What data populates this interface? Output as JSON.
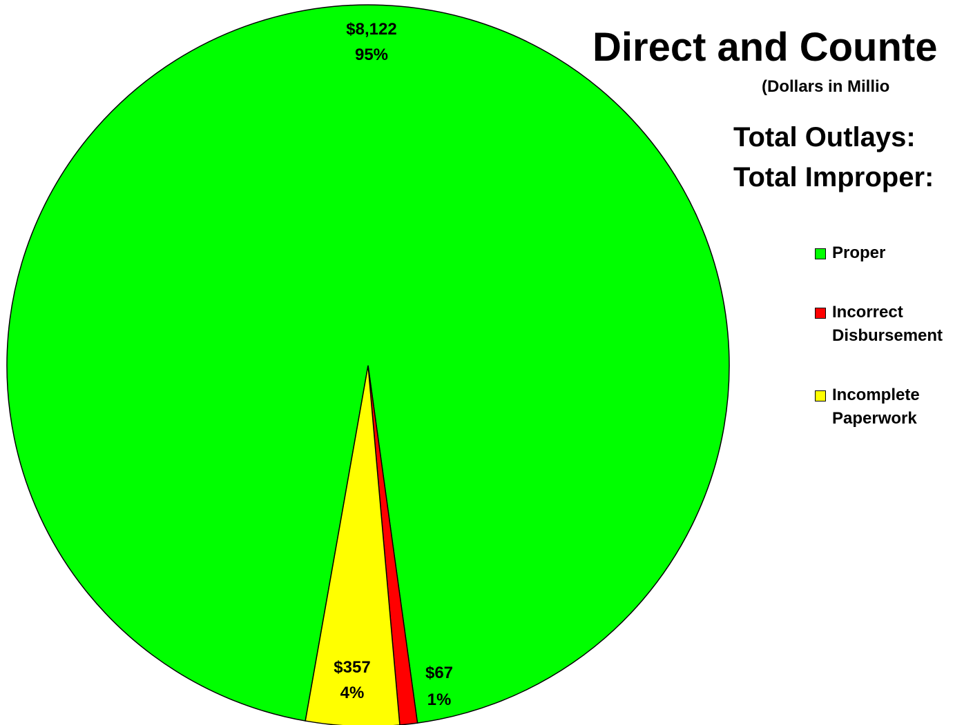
{
  "chart_data": {
    "type": "pie",
    "title": "Direct and Counte",
    "subtitle": "(Dollars in Millio",
    "annotations": [
      "Total Outlays:",
      "Total Improper:"
    ],
    "categories": [
      "Proper",
      "Incorrect Disbursement",
      "Incomplete Paperwork"
    ],
    "values": [
      8122,
      67,
      357
    ],
    "value_labels": [
      "$8,122",
      "$67",
      "$357"
    ],
    "percent_labels": [
      "95%",
      "1%",
      "4%"
    ],
    "colors": [
      "#00ff00",
      "#ff0000",
      "#ffff00"
    ],
    "legend": "right"
  }
}
